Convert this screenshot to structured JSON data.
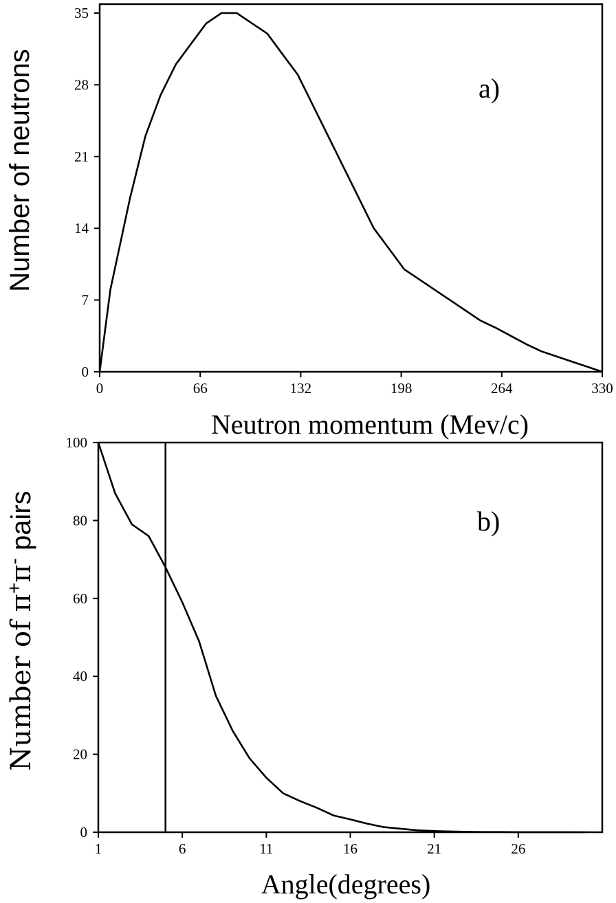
{
  "chart_data": [
    {
      "type": "line",
      "panel_label": "a)",
      "xlabel": "Neutron momentum (Mev/c)",
      "ylabel": "Number of neutrons",
      "xlim": [
        0,
        330
      ],
      "ylim": [
        0,
        35
      ],
      "xticks": [
        0,
        66,
        132,
        198,
        264,
        330
      ],
      "yticks": [
        0,
        7,
        14,
        21,
        28,
        35
      ],
      "grid": false,
      "series": [
        {
          "x": [
            0,
            7,
            20,
            30,
            40,
            50,
            60,
            70,
            80,
            90,
            100,
            110,
            120,
            130,
            140,
            150,
            160,
            170,
            180,
            190,
            200,
            210,
            220,
            230,
            240,
            250,
            260,
            270,
            280,
            290,
            300,
            310,
            320,
            330
          ],
          "y": [
            0,
            8,
            17,
            23,
            27,
            30,
            32,
            34,
            35,
            35,
            34,
            33,
            31,
            29,
            26,
            23,
            20,
            17,
            14,
            12,
            10,
            9,
            8,
            7,
            6,
            5,
            4.3,
            3.5,
            2.7,
            2,
            1.5,
            1,
            0.5,
            0
          ]
        }
      ]
    },
    {
      "type": "line",
      "panel_label": "b)",
      "xlabel": "Angle(degrees)",
      "ylabel": "Number of π⁺π⁻ pairs",
      "xlim": [
        1,
        31
      ],
      "ylim": [
        0,
        100
      ],
      "xticks": [
        1,
        6,
        11,
        16,
        21,
        26
      ],
      "yticks": [
        0,
        20,
        40,
        60,
        80,
        100
      ],
      "grid": false,
      "vertical_marker_x": 5,
      "series": [
        {
          "x": [
            1,
            2,
            3,
            4,
            5,
            6,
            7,
            8,
            9,
            10,
            11,
            12,
            13,
            14,
            15,
            16,
            17,
            18,
            19,
            20,
            21,
            22,
            23,
            24,
            25,
            26,
            27,
            28,
            29,
            30
          ],
          "y": [
            100,
            87,
            79,
            76,
            68,
            59,
            49,
            35,
            26,
            19,
            14,
            10,
            8,
            6.3,
            4.3,
            3.3,
            2.2,
            1.3,
            0.9,
            0.5,
            0.3,
            0.2,
            0.1,
            0.05,
            0.05,
            0.02,
            0.02,
            0.01,
            0.01,
            0
          ]
        }
      ]
    }
  ]
}
